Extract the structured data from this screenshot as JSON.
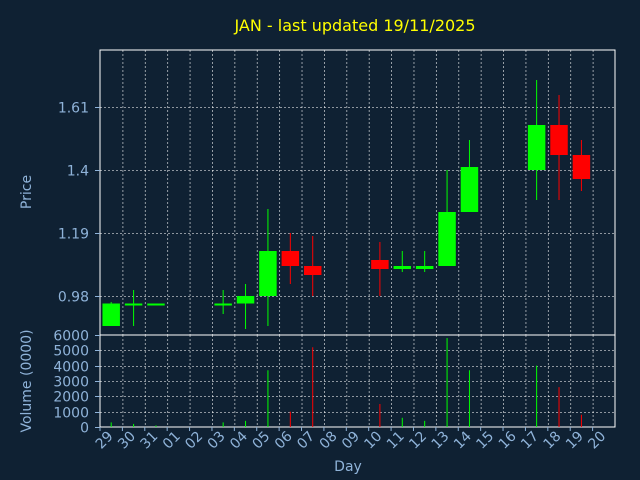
{
  "title": "JAN - last updated 19/11/2025",
  "colors": {
    "background": "#0f2133",
    "title": "#ffff00",
    "axis_text": "#8fb3d9",
    "grid": "#ffffff",
    "up": "#00ff00",
    "down": "#ff0000"
  },
  "chart_data": [
    {
      "type": "candlestick",
      "ylabel": "Price",
      "ylim": [
        0.85,
        1.8
      ],
      "yticks": [
        0.98,
        1.19,
        1.4,
        1.61
      ],
      "grid": true,
      "categories": [
        "29",
        "30",
        "31",
        "01",
        "02",
        "03",
        "04",
        "05",
        "06",
        "07",
        "08",
        "09",
        "10",
        "11",
        "12",
        "13",
        "14",
        "15",
        "16",
        "17",
        "18",
        "19",
        "20"
      ],
      "candles": [
        {
          "day": "29",
          "open": 0.88,
          "high": 0.96,
          "low": 0.88,
          "close": 0.955
        },
        {
          "day": "30",
          "open": 0.95,
          "high": 1.0,
          "low": 0.88,
          "close": 0.955
        },
        {
          "day": "31",
          "open": 0.95,
          "high": 0.955,
          "low": 0.95,
          "close": 0.955
        },
        {
          "day": "03",
          "open": 0.95,
          "high": 1.0,
          "low": 0.92,
          "close": 0.955
        },
        {
          "day": "04",
          "open": 0.955,
          "high": 1.02,
          "low": 0.87,
          "close": 0.98
        },
        {
          "day": "05",
          "open": 0.98,
          "high": 1.27,
          "low": 0.88,
          "close": 1.13
        },
        {
          "day": "06",
          "open": 1.13,
          "high": 1.19,
          "low": 1.02,
          "close": 1.08
        },
        {
          "day": "07",
          "open": 1.08,
          "high": 1.18,
          "low": 0.98,
          "close": 1.05
        },
        {
          "day": "10",
          "open": 1.1,
          "high": 1.16,
          "low": 0.98,
          "close": 1.07
        },
        {
          "day": "11",
          "open": 1.07,
          "high": 1.13,
          "low": 1.06,
          "close": 1.08
        },
        {
          "day": "12",
          "open": 1.07,
          "high": 1.13,
          "low": 1.06,
          "close": 1.08
        },
        {
          "day": "13",
          "open": 1.08,
          "high": 1.4,
          "low": 1.08,
          "close": 1.26
        },
        {
          "day": "14",
          "open": 1.26,
          "high": 1.5,
          "low": 1.26,
          "close": 1.41
        },
        {
          "day": "17",
          "open": 1.4,
          "high": 1.7,
          "low": 1.3,
          "close": 1.55
        },
        {
          "day": "18",
          "open": 1.55,
          "high": 1.65,
          "low": 1.3,
          "close": 1.45
        },
        {
          "day": "19",
          "open": 1.45,
          "high": 1.5,
          "low": 1.33,
          "close": 1.37
        }
      ]
    },
    {
      "type": "bar",
      "ylabel": "Volume (0000)",
      "xlabel": "Day",
      "ylim": [
        0,
        6000
      ],
      "yticks": [
        0,
        1000,
        2000,
        3000,
        4000,
        5000,
        6000
      ],
      "categories": [
        "29",
        "30",
        "31",
        "01",
        "02",
        "03",
        "04",
        "05",
        "06",
        "07",
        "08",
        "09",
        "10",
        "11",
        "12",
        "13",
        "14",
        "15",
        "16",
        "17",
        "18",
        "19",
        "20"
      ],
      "values": [
        300,
        200,
        100,
        0,
        0,
        300,
        400,
        3700,
        1000,
        5200,
        0,
        0,
        1500,
        600,
        400,
        5800,
        3700,
        0,
        0,
        4000,
        2600,
        800,
        0
      ],
      "direction": [
        "up",
        "up",
        "up",
        "",
        "",
        "up",
        "up",
        "up",
        "down",
        "down",
        "",
        "",
        "down",
        "up",
        "up",
        "up",
        "up",
        "",
        "",
        "up",
        "down",
        "down",
        ""
      ]
    }
  ]
}
